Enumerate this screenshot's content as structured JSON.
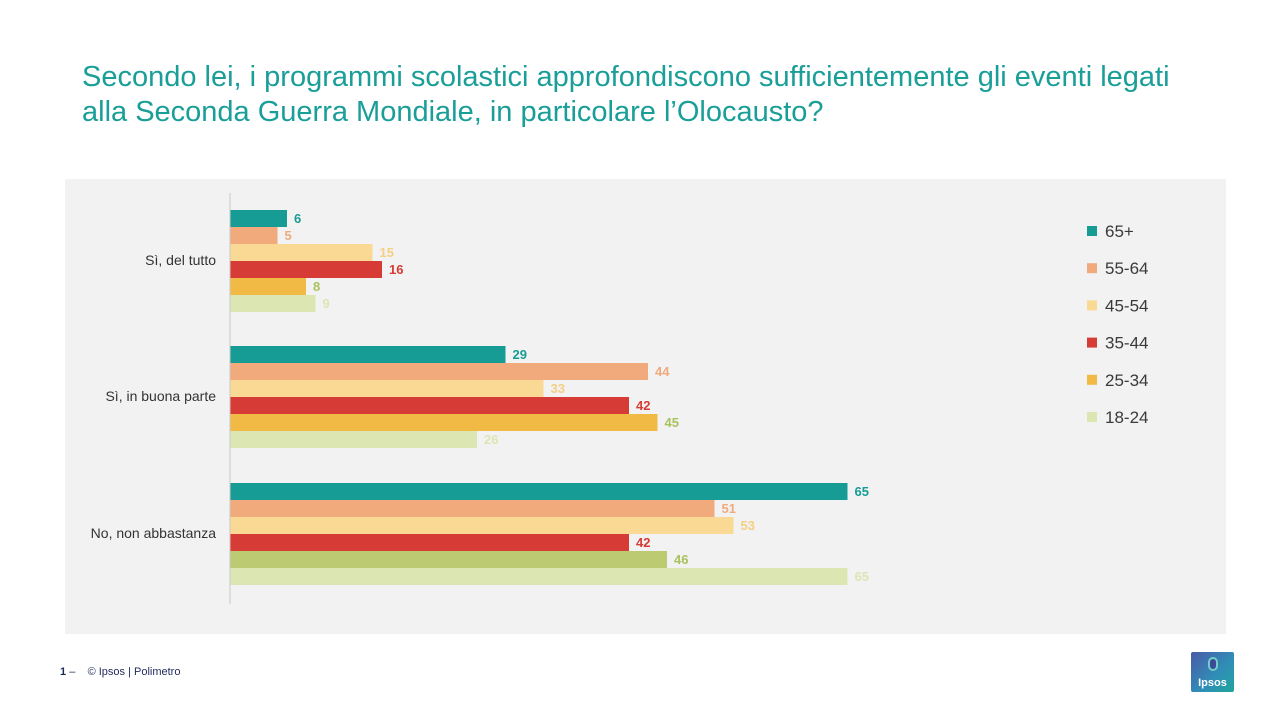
{
  "title": "Secondo lei, i programmi scolastici approfondiscono sufficientemente gli eventi legati alla Seconda Guerra Mondiale, in particolare l’Olocausto?",
  "footer": {
    "page_number": "1",
    "separator": "–",
    "copyright": "© Ipsos | Polimetro"
  },
  "logo": {
    "text": "Ipsos"
  },
  "chart_data": {
    "type": "bar",
    "orientation": "horizontal",
    "title": "",
    "xlabel": "",
    "ylabel": "",
    "xlim": [
      0,
      65
    ],
    "grid": false,
    "legend_position": "right",
    "categories": [
      "Sì, del tutto",
      "Sì, in buona parte",
      "No, non abbastanza"
    ],
    "series": [
      {
        "name": "65+",
        "color": "#179c95",
        "label_color": "#179c95",
        "values": [
          6,
          29,
          65
        ]
      },
      {
        "name": "55-64",
        "color": "#f0aa7c",
        "label_color": "#f0aa7c",
        "values": [
          5,
          44,
          51
        ]
      },
      {
        "name": "45-54",
        "color": "#fad995",
        "label_color": "#f5cf83",
        "values": [
          15,
          33,
          53
        ]
      },
      {
        "name": "35-44",
        "color": "#d73b35",
        "label_color": "#d73b35",
        "values": [
          16,
          42,
          42
        ]
      },
      {
        "name": "25-34",
        "color": "#f0ba45",
        "label_color": "#a9c25e",
        "values": [
          8,
          45,
          46
        ]
      },
      {
        "name": "18-24",
        "color": "#dce6b2",
        "label_color": "#dce6b2",
        "values": [
          9,
          26,
          65
        ]
      }
    ],
    "bar_color_overrides": [
      {
        "series": 4,
        "category": 2,
        "color": "#bccb72"
      }
    ]
  }
}
